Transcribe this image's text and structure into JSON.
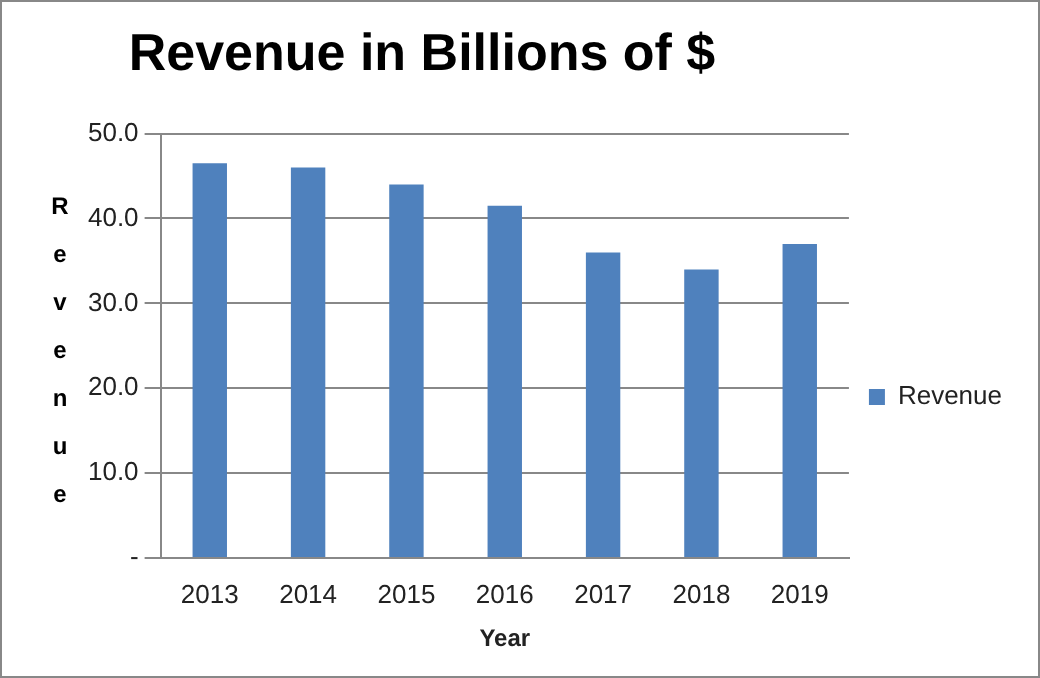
{
  "chart_data": {
    "type": "bar",
    "title": "Revenue in Billions of $",
    "xlabel": "Year",
    "ylabel": "Revenue",
    "categories": [
      "2013",
      "2014",
      "2015",
      "2016",
      "2017",
      "2018",
      "2019"
    ],
    "series": [
      {
        "name": "Revenue",
        "color": "#4f81bd",
        "values": [
          46.5,
          46,
          44,
          41.5,
          36,
          34,
          37
        ]
      }
    ],
    "ylim": [
      0,
      50
    ],
    "yticks": [
      {
        "value": 0,
        "label": "-"
      },
      {
        "value": 10,
        "label": "10.0"
      },
      {
        "value": 20,
        "label": "20.0"
      },
      {
        "value": 30,
        "label": "30.0"
      },
      {
        "value": 40,
        "label": "40.0"
      },
      {
        "value": 50,
        "label": "50.0"
      }
    ],
    "grid": "y",
    "legend": "right"
  }
}
